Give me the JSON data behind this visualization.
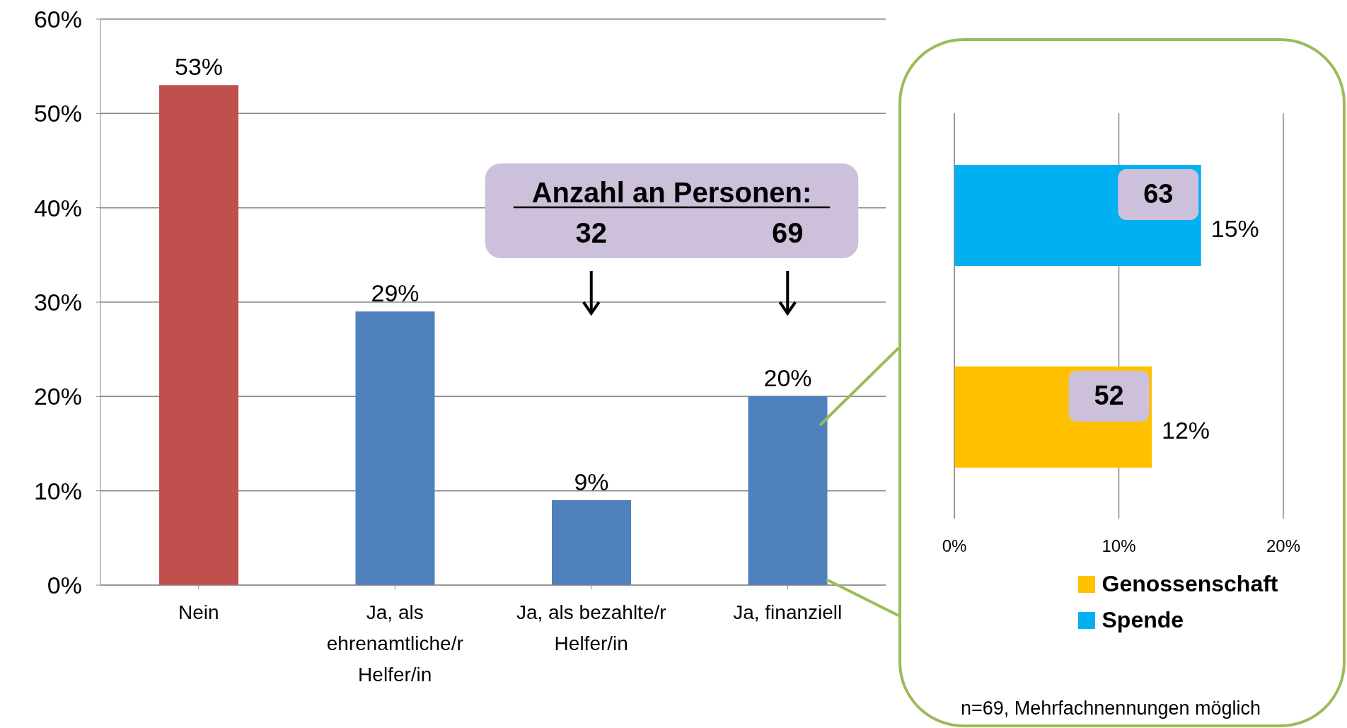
{
  "chart_data": [
    {
      "type": "bar",
      "categories": [
        "Nein",
        "Ja, als ehrenamtliche/r Helfer/in",
        "Ja, als bezahlte/r Helfer/in",
        "Ja, finanziell"
      ],
      "values": [
        53,
        29,
        9,
        20
      ],
      "colors": [
        "#c0504d",
        "#4f81bd",
        "#4f81bd",
        "#4f81bd"
      ],
      "value_labels": [
        "53%",
        "29%",
        "9%",
        "20%"
      ],
      "ylim": [
        0,
        60
      ],
      "yticks": [
        {
          "value": 0,
          "label": "0%"
        },
        {
          "value": 10,
          "label": "10%"
        },
        {
          "value": 20,
          "label": "20%"
        },
        {
          "value": 30,
          "label": "30%"
        },
        {
          "value": 40,
          "label": "40%"
        },
        {
          "value": 50,
          "label": "50%"
        },
        {
          "value": 60,
          "label": "60%"
        }
      ],
      "grid": "y",
      "annotations": [
        "Anzahl an Personen:",
        "32",
        "69"
      ]
    },
    {
      "type": "bar",
      "orientation": "horizontal",
      "categories": [
        null
      ],
      "series": [
        {
          "name": "Genossenschaft",
          "color": "#ffc000",
          "values": [
            12
          ],
          "value_labels": [
            "12%"
          ]
        },
        {
          "name": "Spende",
          "color": "#00b0f0",
          "values": [
            15
          ],
          "value_labels": [
            "15%"
          ]
        }
      ],
      "xlim": [
        0,
        20
      ],
      "xticks": [
        {
          "value": 0,
          "label": "0%"
        },
        {
          "value": 10,
          "label": "10%"
        },
        {
          "value": 20,
          "label": "20%"
        }
      ],
      "grid": "x",
      "legend": "bottom",
      "annotations": [
        {
          "text": "63",
          "x": 15
        },
        {
          "text": "52",
          "x": 12
        },
        "n=69, Mehrfachnennungen möglich"
      ]
    }
  ]
}
